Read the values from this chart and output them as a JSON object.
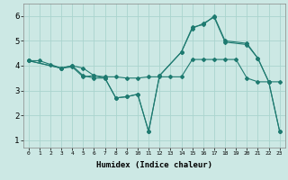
{
  "xlabel": "Humidex (Indice chaleur)",
  "bg_color": "#cce8e4",
  "grid_color": "#aad4ce",
  "line_color": "#1e7a70",
  "xlim": [
    -0.5,
    23.5
  ],
  "ylim": [
    0.7,
    6.5
  ],
  "xticks": [
    0,
    1,
    2,
    3,
    4,
    5,
    6,
    7,
    8,
    9,
    10,
    11,
    12,
    13,
    14,
    15,
    16,
    17,
    18,
    19,
    20,
    21,
    22,
    23
  ],
  "yticks": [
    1,
    2,
    3,
    4,
    5,
    6
  ],
  "series": [
    {
      "x": [
        0,
        1,
        2,
        3,
        4,
        5,
        6,
        7,
        8,
        9,
        10,
        11,
        12,
        13,
        14,
        15,
        16,
        17,
        18,
        19,
        20,
        21,
        22,
        23
      ],
      "y": [
        4.2,
        4.2,
        4.05,
        3.9,
        4.0,
        3.9,
        3.6,
        3.55,
        3.55,
        3.5,
        3.5,
        3.55,
        3.55,
        3.55,
        3.55,
        4.25,
        4.25,
        4.25,
        4.25,
        4.25,
        3.5,
        3.35,
        3.35,
        3.35
      ]
    },
    {
      "x": [
        0,
        3,
        4,
        5,
        6,
        7,
        8,
        9,
        10,
        11,
        12,
        14,
        15,
        16,
        17,
        18,
        20,
        21,
        22,
        23
      ],
      "y": [
        4.2,
        3.9,
        4.0,
        3.6,
        3.5,
        3.5,
        2.7,
        2.75,
        2.85,
        1.35,
        3.6,
        4.55,
        5.5,
        5.7,
        5.95,
        4.95,
        4.85,
        4.3,
        3.35,
        1.35
      ]
    },
    {
      "x": [
        0,
        3,
        4,
        5,
        6,
        7,
        8,
        9,
        10,
        11,
        12,
        14,
        15,
        16,
        17,
        18,
        20,
        21,
        22,
        23
      ],
      "y": [
        4.2,
        3.9,
        3.95,
        3.55,
        3.6,
        3.5,
        2.7,
        2.75,
        2.85,
        1.35,
        3.6,
        4.55,
        5.55,
        5.65,
        6.0,
        5.0,
        4.9,
        4.3,
        3.35,
        1.35
      ]
    }
  ]
}
